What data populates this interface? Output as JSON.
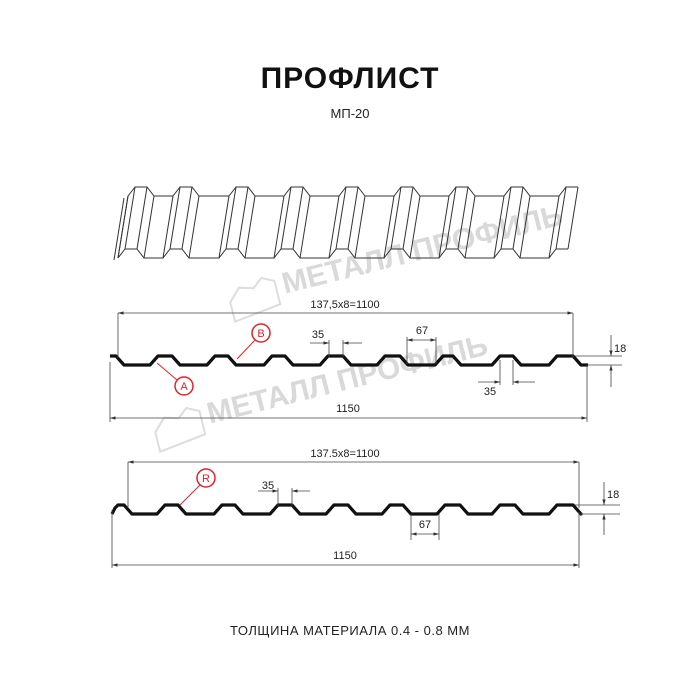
{
  "title": "ПРОФЛИСТ",
  "subtitle": "МП-20",
  "watermark": "МЕТАЛЛ ПРОФИЛЬ",
  "profile_a": {
    "pitch_label": "137,5x8=1100",
    "width_label": "1150",
    "top_width_label": "35",
    "bottom_width_label": "35",
    "rib_width_label": "67",
    "height_label": "18",
    "marker_a": "A",
    "marker_b": "B"
  },
  "profile_b": {
    "pitch_label": "137.5x8=1100",
    "width_label": "1150",
    "top_width_label": "35",
    "rib_width_label": "67",
    "height_label": "18",
    "marker_r": "R"
  },
  "footer": "ТОЛЩИНА МАТЕРИАЛА 0.4 - 0.8 ММ",
  "colors": {
    "profile": "#111111",
    "marker": "#e8202a",
    "dimension": "#444444",
    "watermark": "#d6d6d6"
  }
}
